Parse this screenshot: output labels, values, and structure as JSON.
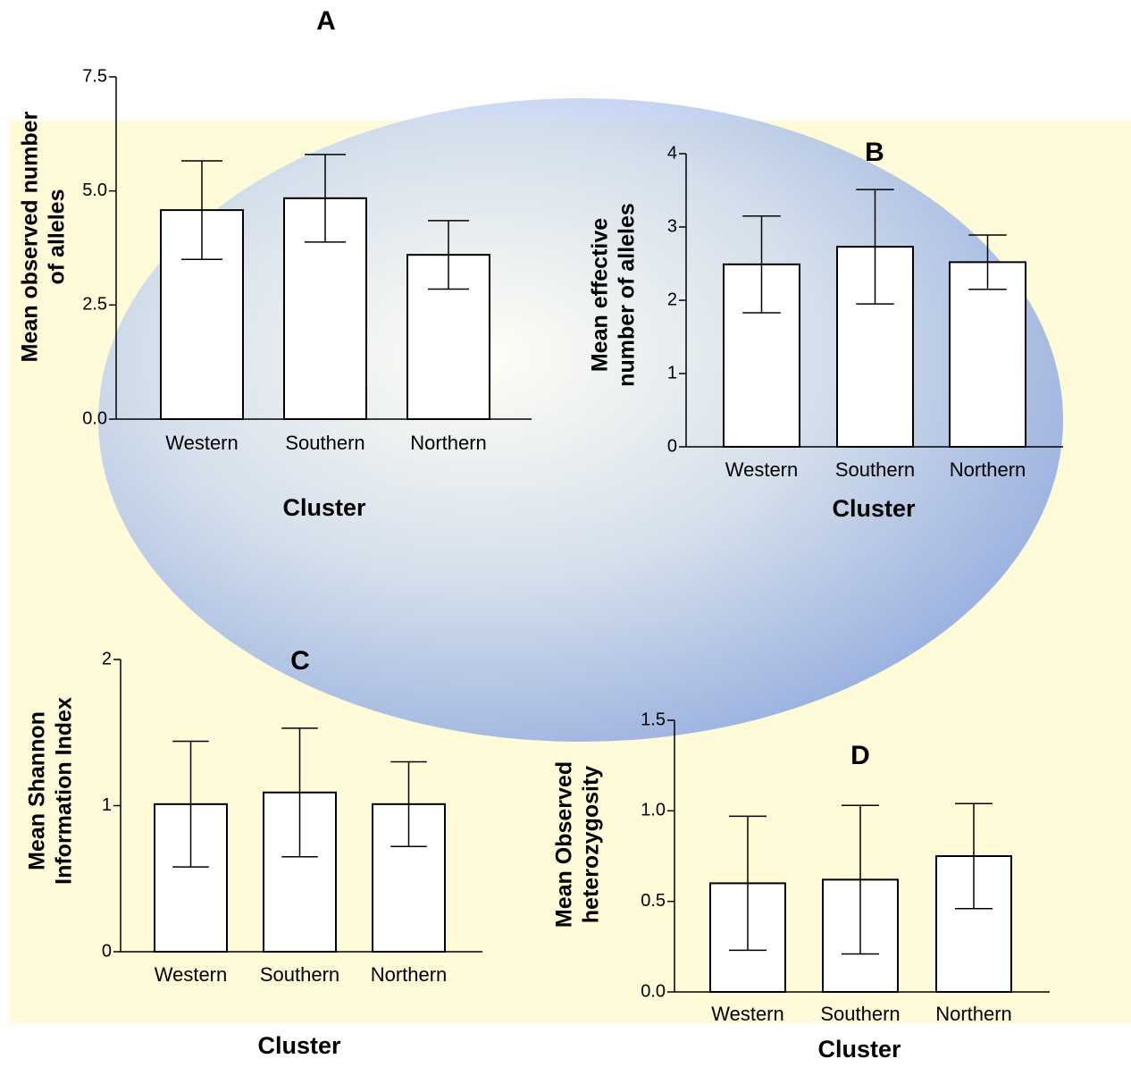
{
  "chart_data": [
    {
      "type": "bar",
      "title": "A",
      "ylabel": [
        "Mean observed number",
        "of alleles"
      ],
      "xlabel": "Cluster",
      "categories": [
        "Western",
        "Southern",
        "Northern"
      ],
      "values": [
        4.58,
        4.84,
        3.6
      ],
      "errors": [
        1.08,
        0.96,
        0.75
      ],
      "color": "#ffffff",
      "ylim": [
        0,
        7.5
      ],
      "yticks": [
        {
          "value": 0,
          "label": "0.0"
        },
        2.5,
        {
          "value": 5,
          "label": "5.0"
        },
        7.5
      ]
    },
    {
      "type": "bar",
      "title": "B",
      "ylabel": [
        "Mean effective",
        "number of alleles"
      ],
      "xlabel": "Cluster",
      "categories": [
        "Western",
        "Southern",
        "Northern"
      ],
      "values": [
        2.49,
        2.73,
        2.52
      ],
      "errors": [
        0.66,
        0.78,
        0.37
      ],
      "color": "#ffffff",
      "ylim": [
        0,
        4
      ],
      "yticks": [
        0,
        1,
        2,
        3,
        4
      ]
    },
    {
      "type": "bar",
      "title": "C",
      "ylabel": [
        "Mean Shannon",
        "Information Index"
      ],
      "xlabel": "Cluster",
      "categories": [
        "Western",
        "Southern",
        "Northern"
      ],
      "values": [
        1.01,
        1.09,
        1.01
      ],
      "errors": [
        0.43,
        0.44,
        0.29
      ],
      "color": "#ffffff",
      "ylim": [
        0,
        2
      ],
      "yticks": [
        0,
        1,
        2
      ]
    },
    {
      "type": "bar",
      "title": "D",
      "ylabel": [
        "Mean Observed",
        "heterozygosity"
      ],
      "xlabel": "Cluster",
      "categories": [
        "Western",
        "Southern",
        "Northern"
      ],
      "values": [
        0.6,
        0.62,
        0.75
      ],
      "errors": [
        0.37,
        0.41,
        0.29
      ],
      "color": "#ffffff",
      "ylim": [
        0,
        1.5
      ],
      "yticks": [
        {
          "value": 0,
          "label": "0.0"
        },
        0.5,
        {
          "value": 1,
          "label": "1.0"
        },
        1.5
      ]
    }
  ]
}
